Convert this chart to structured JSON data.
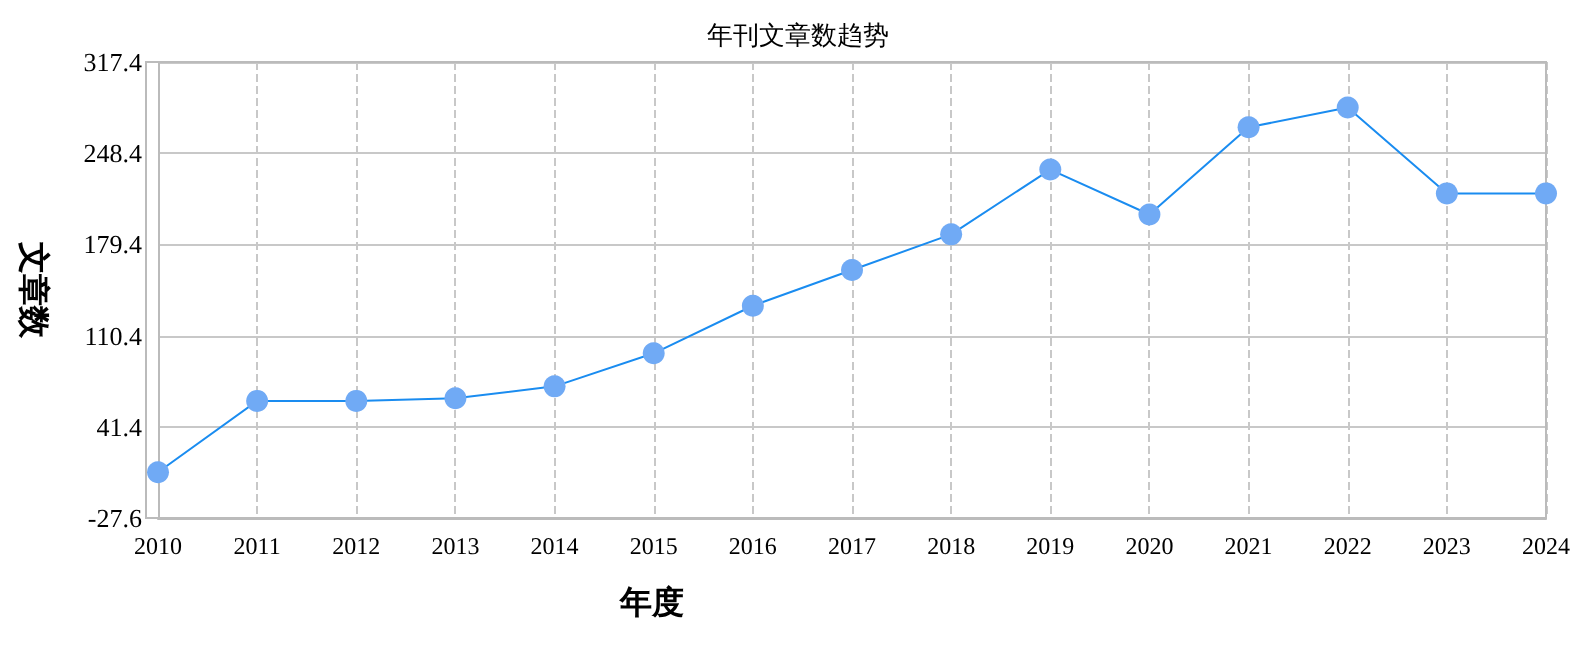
{
  "chart_data": {
    "type": "line",
    "title": "年刊文章数趋势",
    "xlabel": "年度",
    "ylabel": "文章数",
    "categories": [
      "2010",
      "2011",
      "2012",
      "2013",
      "2014",
      "2015",
      "2016",
      "2017",
      "2018",
      "2019",
      "2020",
      "2021",
      "2022",
      "2023",
      "2024"
    ],
    "series": [
      {
        "color": "#1a8cf0",
        "values": [
          7,
          61,
          61,
          63,
          72,
          97,
          133,
          160,
          187,
          236,
          202,
          268,
          283,
          218,
          218
        ]
      }
    ],
    "ylim": [
      -27.6,
      317.4
    ],
    "yticks": [
      -27.6,
      41.4,
      110.4,
      179.4,
      248.4,
      317.4
    ],
    "grid": true,
    "marker": "circle"
  }
}
